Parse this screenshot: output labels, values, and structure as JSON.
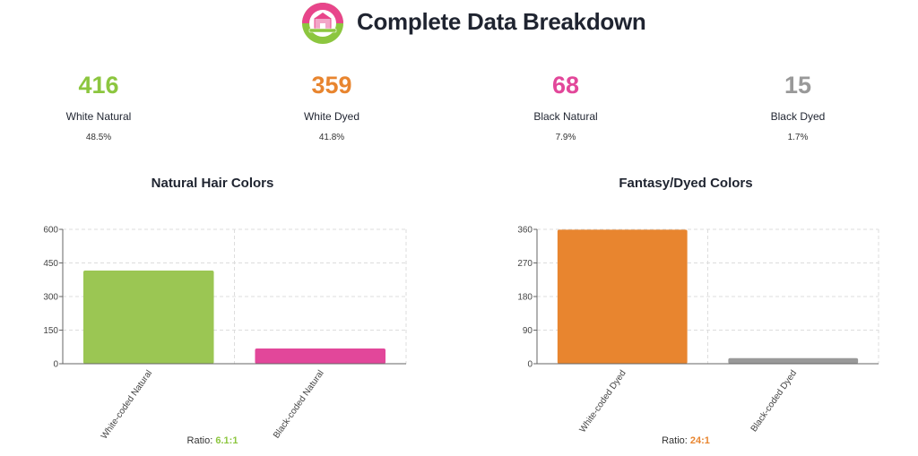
{
  "header": {
    "title": "Complete Data Breakdown",
    "logo_icon": "doll-shop-badge-icon",
    "logo_colors": {
      "ring_top": "#e8458b",
      "ring_bottom": "#8cc63f"
    }
  },
  "stats": [
    {
      "value": "416",
      "label": "White Natural",
      "percent": "48.5%",
      "color": "#8cc63f"
    },
    {
      "value": "359",
      "label": "White Dyed",
      "percent": "41.8%",
      "color": "#e8852f"
    },
    {
      "value": "68",
      "label": "Black Natural",
      "percent": "7.9%",
      "color": "#e2479a"
    },
    {
      "value": "15",
      "label": "Black Dyed",
      "percent": "1.7%",
      "color": "#999999"
    }
  ],
  "chart_data": [
    {
      "type": "bar",
      "title": "Natural Hair Colors",
      "categories": [
        "White-coded Natural",
        "Black-coded Natural"
      ],
      "values": [
        416,
        68
      ],
      "colors": [
        "#9bc653",
        "#e2479a"
      ],
      "ylim": [
        0,
        600
      ],
      "yticks": [
        "0",
        "150",
        "300",
        "450",
        "600"
      ],
      "grid": true,
      "ratio_label": "Ratio:",
      "ratio_value": "6.1:1",
      "ratio_color": "#8cc63f"
    },
    {
      "type": "bar",
      "title": "Fantasy/Dyed Colors",
      "categories": [
        "White-coded Dyed",
        "Black-coded Dyed"
      ],
      "values": [
        359,
        15
      ],
      "colors": [
        "#e8852f",
        "#999999"
      ],
      "ylim": [
        0,
        360
      ],
      "yticks": [
        "0",
        "90",
        "180",
        "270",
        "360"
      ],
      "grid": true,
      "ratio_label": "Ratio:",
      "ratio_value": "24:1",
      "ratio_color": "#e8852f"
    }
  ]
}
